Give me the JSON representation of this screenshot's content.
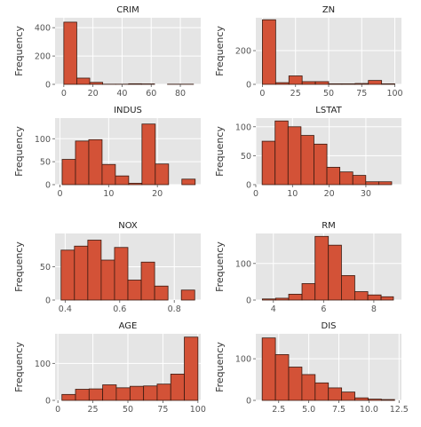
{
  "chart_data": [
    {
      "type": "bar",
      "title": "CRIM",
      "ylabel": "Frequency",
      "xlim": [
        -6,
        94
      ],
      "ylim": [
        0,
        470
      ],
      "bin_edges": [
        0,
        8.9,
        17.8,
        26.7,
        35.6,
        44.5,
        53.4,
        62.3,
        71.2,
        80.1,
        89.0
      ],
      "values": [
        439,
        44,
        14,
        1,
        1,
        4,
        3,
        0,
        1,
        1
      ],
      "xticks": [
        0,
        20,
        40,
        60,
        80
      ],
      "xtick_labels": [
        "0",
        "20",
        "40",
        "60",
        "80"
      ],
      "yticks": [
        0,
        200,
        400
      ],
      "ytick_labels": [
        "0",
        "200",
        "400"
      ]
    },
    {
      "type": "bar",
      "title": "ZN",
      "ylabel": "Frequency",
      "xlim": [
        -5,
        105
      ],
      "ylim": [
        0,
        395
      ],
      "bin_edges": [
        0,
        10,
        20,
        30,
        40,
        50,
        60,
        70,
        80,
        90,
        100
      ],
      "values": [
        383,
        10,
        50,
        16,
        16,
        3,
        3,
        5,
        23,
        3
      ],
      "xticks": [
        0,
        25,
        50,
        75,
        100
      ],
      "xtick_labels": [
        "0",
        "25",
        "50",
        "75",
        "100"
      ],
      "yticks": [
        0,
        200
      ],
      "ytick_labels": [
        "0",
        "200"
      ]
    },
    {
      "type": "bar",
      "title": "INDUS",
      "ylabel": "Frequency",
      "xlim": [
        -1.0,
        28.9
      ],
      "ylim": [
        0,
        145
      ],
      "bin_edges": [
        0.46,
        3.19,
        5.92,
        8.65,
        11.38,
        14.11,
        16.84,
        19.57,
        22.3,
        25.03,
        27.76
      ],
      "values": [
        55,
        95,
        98,
        44,
        19,
        3,
        132,
        45,
        0,
        12
      ],
      "xticks": [
        0,
        10,
        20
      ],
      "xtick_labels": [
        "0",
        "10",
        "20"
      ],
      "yticks": [
        0,
        50,
        100
      ],
      "ytick_labels": [
        "0",
        "50",
        "100"
      ]
    },
    {
      "type": "bar",
      "title": "LSTAT",
      "ylabel": "Frequency",
      "xlim": [
        0,
        39.7
      ],
      "ylim": [
        0,
        115
      ],
      "bin_edges": [
        1.73,
        5.26,
        8.79,
        12.32,
        15.85,
        19.38,
        22.91,
        26.44,
        29.97,
        33.5,
        37.03
      ],
      "values": [
        75,
        110,
        100,
        85,
        70,
        30,
        22,
        16,
        5,
        5
      ],
      "xticks": [
        0,
        10,
        20,
        30
      ],
      "xtick_labels": [
        "0",
        "10",
        "20",
        "30"
      ],
      "yticks": [
        0,
        50,
        100
      ],
      "ytick_labels": [
        "0",
        "50",
        "100"
      ]
    },
    {
      "type": "bar",
      "title": "NOX",
      "ylabel": "Frequency",
      "xlim": [
        0.363,
        0.897
      ],
      "ylim": [
        0,
        100
      ],
      "bin_edges": [
        0.385,
        0.434,
        0.483,
        0.532,
        0.581,
        0.63,
        0.679,
        0.728,
        0.777,
        0.826,
        0.875
      ],
      "values": [
        75,
        81,
        90,
        60,
        79,
        30,
        57,
        21,
        0,
        15
      ],
      "xticks": [
        0.4,
        0.6,
        0.8
      ],
      "xtick_labels": [
        "0.4",
        "0.6",
        "0.8"
      ],
      "yticks": [
        0,
        50
      ],
      "ytick_labels": [
        "0",
        "50"
      ]
    },
    {
      "type": "bar",
      "title": "RM",
      "ylabel": "Frequency",
      "xlim": [
        3.3,
        9.1
      ],
      "ylim": [
        0,
        182
      ],
      "bin_edges": [
        3.56,
        4.09,
        4.61,
        5.14,
        5.66,
        6.19,
        6.71,
        7.24,
        7.76,
        8.29,
        8.78
      ],
      "values": [
        3,
        5,
        16,
        45,
        174,
        150,
        67,
        23,
        14,
        9
      ],
      "xticks": [
        4,
        6,
        8
      ],
      "xtick_labels": [
        "4",
        "6",
        "8"
      ],
      "yticks": [
        0,
        100
      ],
      "ytick_labels": [
        "0",
        "100"
      ]
    },
    {
      "type": "bar",
      "title": "AGE",
      "ylabel": "Frequency",
      "xlim": [
        -2,
        102
      ],
      "ylim": [
        0,
        180
      ],
      "bin_edges": [
        2.9,
        12.6,
        22.3,
        32.0,
        41.7,
        51.5,
        61.2,
        70.9,
        80.6,
        90.3,
        100.0
      ],
      "values": [
        16,
        30,
        31,
        42,
        34,
        38,
        39,
        44,
        71,
        171
      ],
      "xticks": [
        0,
        25,
        50,
        75,
        100
      ],
      "xtick_labels": [
        "0",
        "25",
        "50",
        "75",
        "100"
      ],
      "yticks": [
        0,
        100
      ],
      "ytick_labels": [
        "0",
        "100"
      ]
    },
    {
      "type": "bar",
      "title": "DIS",
      "ylabel": "Frequency",
      "xlim": [
        0.6,
        12.7
      ],
      "ylim": [
        0,
        160
      ],
      "bin_edges": [
        1.13,
        2.23,
        3.33,
        4.43,
        5.53,
        6.63,
        7.73,
        8.83,
        9.93,
        11.03,
        12.13
      ],
      "values": [
        150,
        110,
        80,
        62,
        42,
        30,
        20,
        6,
        3,
        2
      ],
      "xticks": [
        2.5,
        5.0,
        7.5,
        10.0,
        12.5
      ],
      "xtick_labels": [
        "2.5",
        "5.0",
        "7.5",
        "10.0",
        "12.5"
      ],
      "yticks": [
        0,
        100
      ],
      "ytick_labels": [
        "0",
        "100"
      ]
    }
  ],
  "style": {
    "bar_color": "#d35237",
    "edge_color": "#3a1a10",
    "axes_bg": "#e5e5e5",
    "grid_color": "#ffffff"
  }
}
